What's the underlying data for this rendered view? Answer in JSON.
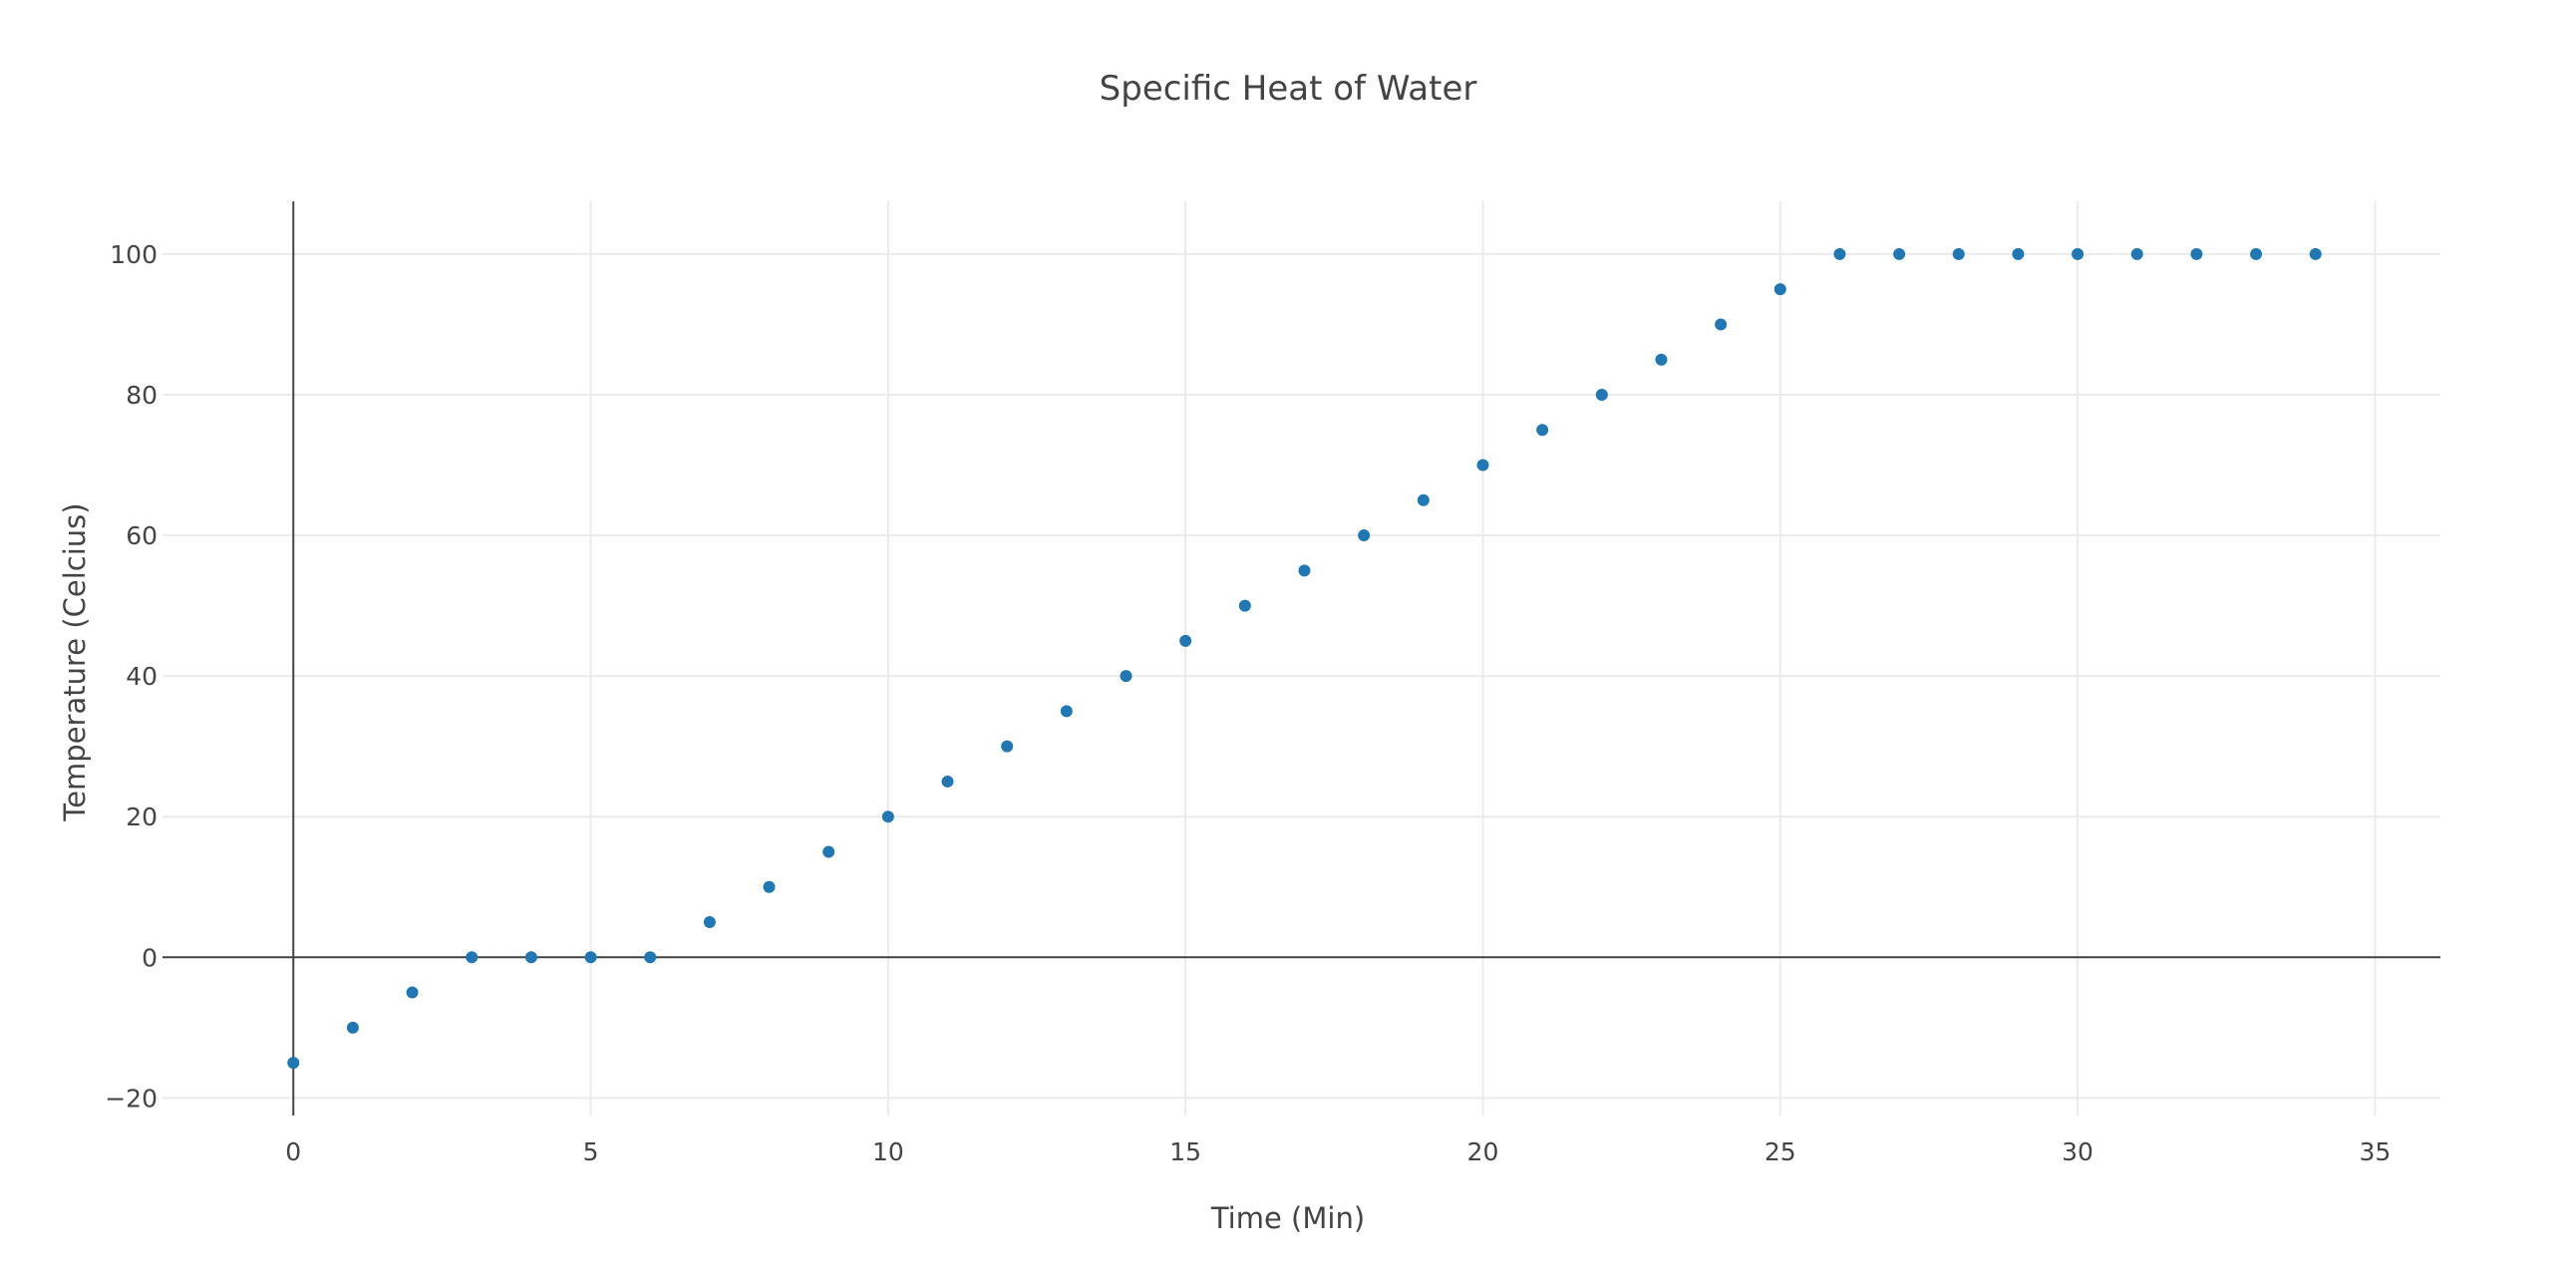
{
  "chart_data": {
    "type": "scatter",
    "title": "Specific Heat of Water",
    "xlabel": "Time (Min)",
    "ylabel": "Temperature (Celcius)",
    "xlim": [
      -2.2,
      36.1
    ],
    "ylim": [
      -22.5,
      107.5
    ],
    "xticks": [
      0,
      5,
      10,
      15,
      20,
      25,
      30,
      35
    ],
    "xtick_labels": [
      "0",
      "5",
      "10",
      "15",
      "20",
      "25",
      "30",
      "35"
    ],
    "yticks": [
      -20,
      0,
      20,
      40,
      60,
      80,
      100
    ],
    "ytick_labels": [
      "−20",
      "0",
      "20",
      "40",
      "60",
      "80",
      "100"
    ],
    "grid": true,
    "legend": "none",
    "marker_color": "#1f77b4",
    "series": [
      {
        "x": [
          0,
          1,
          2,
          3,
          4,
          5,
          6,
          7,
          8,
          9,
          10,
          11,
          12,
          13,
          14,
          15,
          16,
          17,
          18,
          19,
          20,
          21,
          22,
          23,
          24,
          25,
          26,
          27,
          28,
          29,
          30,
          31,
          32,
          33,
          34
        ],
        "y": [
          -15,
          -10,
          -5,
          0,
          0,
          0,
          0,
          5,
          10,
          15,
          20,
          25,
          30,
          35,
          40,
          45,
          50,
          55,
          60,
          65,
          70,
          75,
          80,
          85,
          90,
          95,
          100,
          100,
          100,
          100,
          100,
          100,
          100,
          100,
          100
        ]
      }
    ]
  }
}
